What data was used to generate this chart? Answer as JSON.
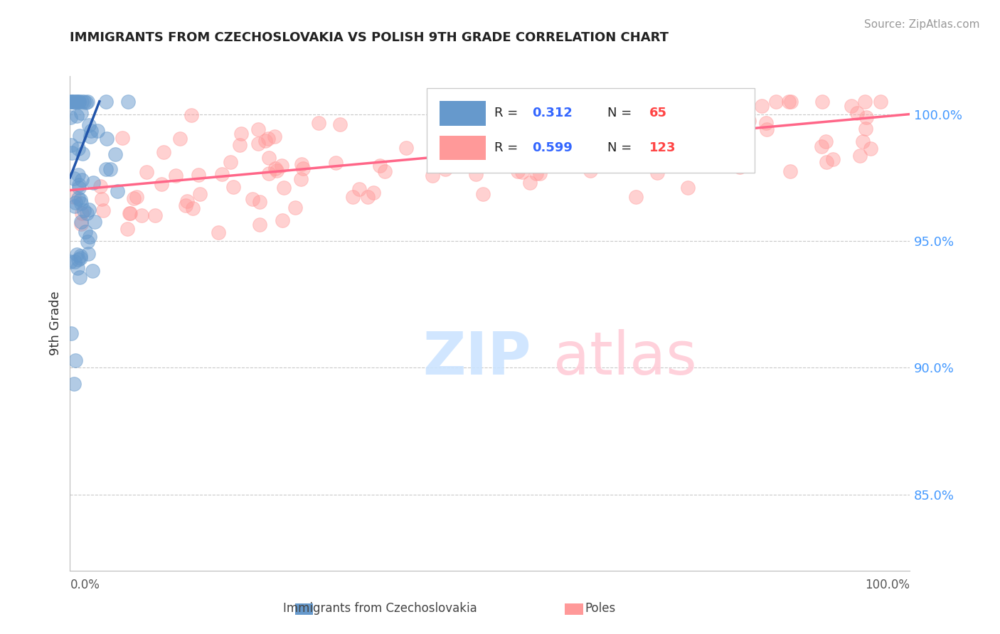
{
  "title": "IMMIGRANTS FROM CZECHOSLOVAKIA VS POLISH 9TH GRADE CORRELATION CHART",
  "source": "Source: ZipAtlas.com",
  "ylabel": "9th Grade",
  "ylabel_right_ticks": [
    85.0,
    90.0,
    95.0,
    100.0
  ],
  "xmin": 0.0,
  "xmax": 100.0,
  "ymin": 82.0,
  "ymax": 101.5,
  "r_blue": 0.312,
  "n_blue": 65,
  "r_pink": 0.599,
  "n_pink": 123,
  "color_blue": "#6699CC",
  "color_pink": "#FF9999",
  "color_blue_line": "#2255AA",
  "color_pink_line": "#FF6688",
  "color_title": "#222222",
  "color_axis_label": "#333333",
  "color_right_tick": "#4499FF",
  "color_legend_r": "#3366FF",
  "color_legend_n": "#FF4444",
  "background_color": "#FFFFFF"
}
